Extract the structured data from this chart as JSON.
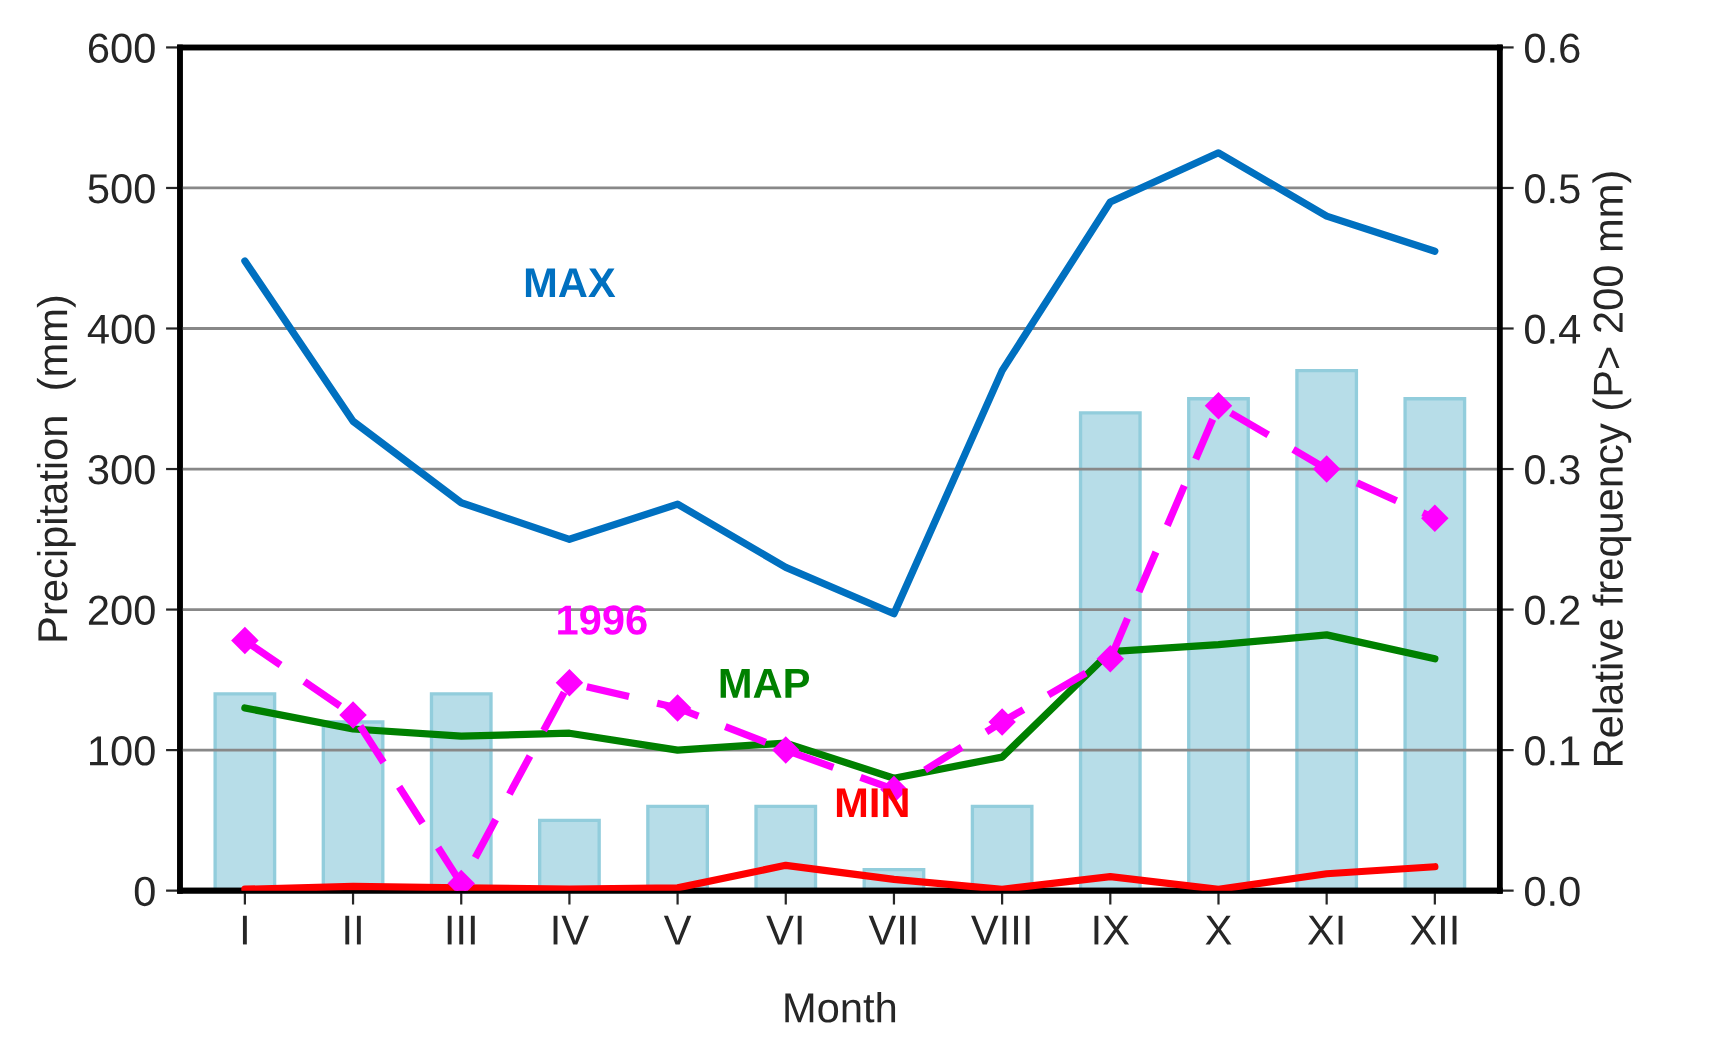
{
  "chart_data": {
    "type": "line",
    "xlabel": "Month",
    "ylabel": "Precipitation  (mm)",
    "y2label": "Relative frequency (P> 200 mm)",
    "categories": [
      "I",
      "II",
      "III",
      "IV",
      "V",
      "VI",
      "VII",
      "VIII",
      "IX",
      "X",
      "XI",
      "XII"
    ],
    "series": [
      {
        "type": "bar",
        "axis": "y2",
        "color": "#b7dde8",
        "values": [
          0.14,
          0.12,
          0.14,
          0.05,
          0.06,
          0.06,
          0.015,
          0.06,
          0.34,
          0.35,
          0.37,
          0.35
        ]
      },
      {
        "name": "MAX",
        "color": "#0070c0",
        "line_style": "solid",
        "marker": "none",
        "values": [
          448,
          334,
          276,
          250,
          275,
          230,
          197,
          370,
          490,
          525,
          480,
          455
        ]
      },
      {
        "name": "MAP",
        "color": "#008000",
        "line_style": "solid",
        "marker": "none",
        "values": [
          130,
          115,
          110,
          112,
          100,
          105,
          80,
          95,
          170,
          175,
          182,
          165
        ]
      },
      {
        "name": "MIN",
        "color": "#ff0000",
        "line_style": "solid",
        "marker": "none",
        "values": [
          1,
          3,
          2,
          1,
          2,
          18,
          8,
          1,
          10,
          1,
          12,
          17
        ]
      },
      {
        "name": "1996",
        "color": "#ff00ff",
        "line_style": "dashed",
        "marker": "diamond",
        "values": [
          178,
          125,
          5,
          148,
          130,
          100,
          72,
          120,
          165,
          345,
          300,
          265
        ]
      }
    ],
    "ylim": [
      0,
      600
    ],
    "yticks": [
      0,
      100,
      200,
      300,
      400,
      500,
      600
    ],
    "y2lim": [
      0,
      0.6
    ],
    "y2ticks": [
      {
        "value": 0,
        "label": "0.0"
      },
      0.1,
      0.2,
      0.3,
      0.4,
      0.5,
      0.6
    ],
    "grid": "y",
    "legend": false
  }
}
